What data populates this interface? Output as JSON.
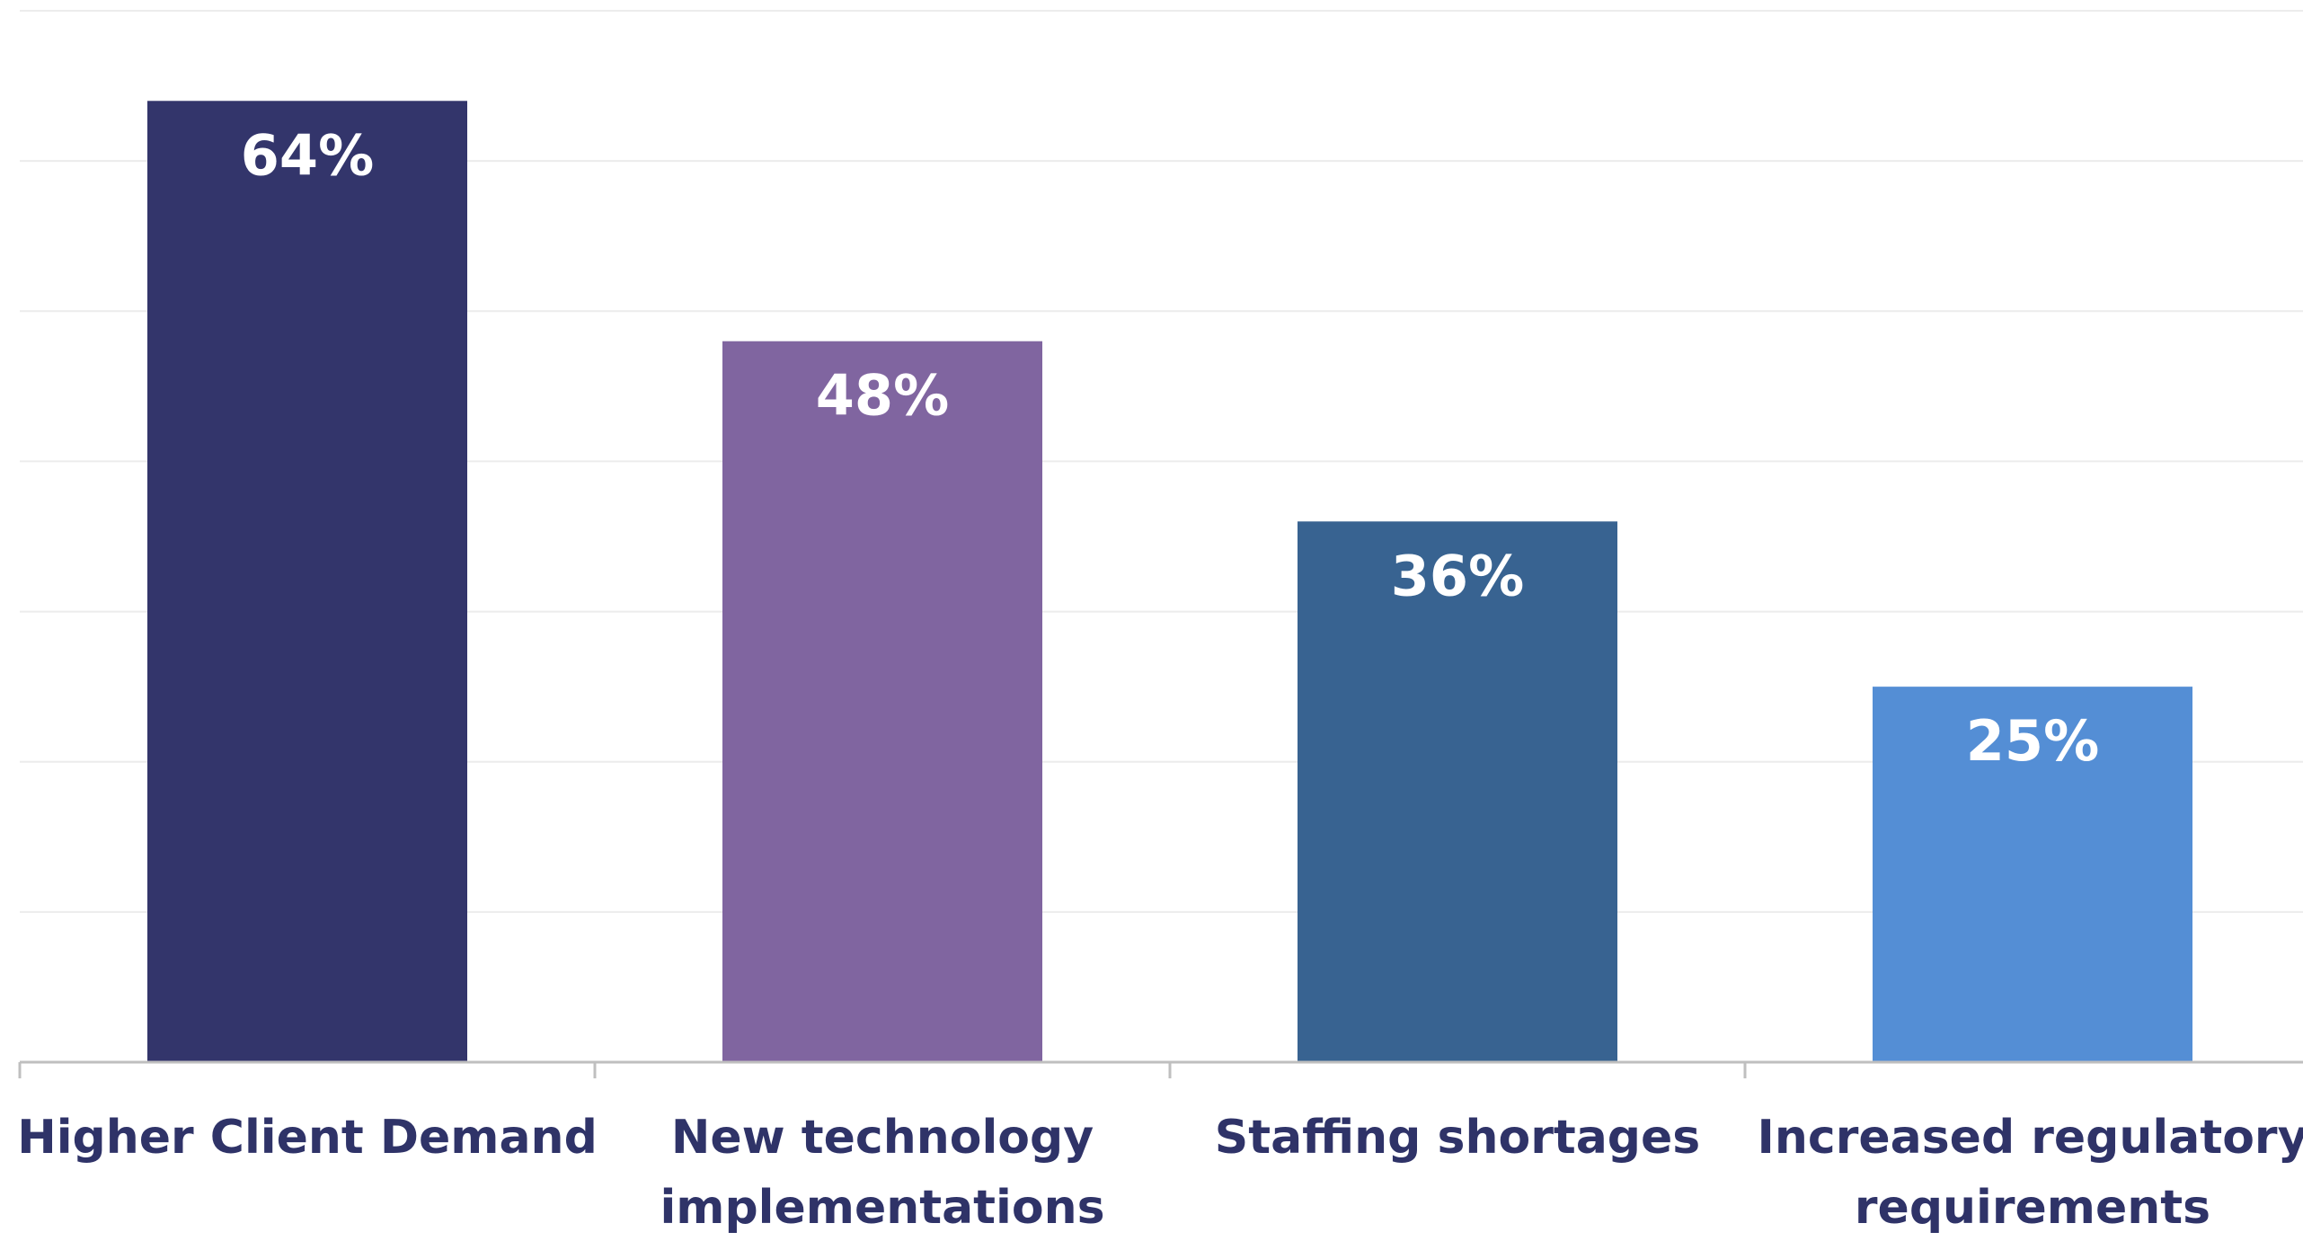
{
  "chart_data": {
    "type": "bar",
    "categories": [
      [
        "Higher Client Demand"
      ],
      [
        "New technology",
        "implementations"
      ],
      [
        "Staffing shortages"
      ],
      [
        "Increased regulatory",
        "requirements"
      ]
    ],
    "values": [
      64,
      48,
      36,
      25
    ],
    "value_labels": [
      "64%",
      "48%",
      "36%",
      "25%"
    ],
    "bar_colors": [
      "#33356b",
      "#8065a0",
      "#386391",
      "#548ed5"
    ],
    "label_color": "#2f3368",
    "value_label_color": "#ffffff",
    "gridline_color": "#ececec",
    "axis_color": "#bfbfbf",
    "ylim": [
      0,
      70
    ],
    "grid": true,
    "legend": "none",
    "title": "",
    "xlabel": "",
    "ylabel": ""
  }
}
